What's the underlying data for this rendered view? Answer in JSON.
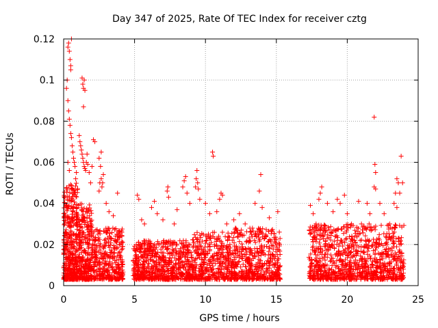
{
  "chart_data": {
    "type": "scatter",
    "title": "Day 347 of 2025, Rate Of TEC Index for receiver cztg",
    "xlabel": "GPS time / hours",
    "ylabel": "ROTI / TECUs",
    "xlim": [
      0,
      25
    ],
    "ylim": [
      0,
      0.12
    ],
    "xticks": [
      0,
      5,
      10,
      15,
      20,
      25
    ],
    "yticks": [
      0,
      0.02,
      0.04,
      0.06,
      0.08,
      0.1,
      0.12
    ],
    "xtick_labels": [
      "0",
      "5",
      "10",
      "15",
      "20",
      "25"
    ],
    "ytick_labels": [
      "0",
      "0.02",
      "0.04",
      "0.06",
      "0.08",
      "0.1",
      "0.12"
    ],
    "grid": true,
    "marker": "plus",
    "color": "#ff0000",
    "density_segments": [
      {
        "x_range": [
          0.0,
          1.0
        ],
        "y_range": [
          0.003,
          0.05
        ],
        "count": 420
      },
      {
        "x_range": [
          1.0,
          2.0
        ],
        "y_range": [
          0.003,
          0.04
        ],
        "count": 300
      },
      {
        "x_range": [
          2.0,
          4.2
        ],
        "y_range": [
          0.003,
          0.028
        ],
        "count": 360
      },
      {
        "x_range": [
          4.9,
          9.0
        ],
        "y_range": [
          0.003,
          0.022
        ],
        "count": 650
      },
      {
        "x_range": [
          9.0,
          12.0
        ],
        "y_range": [
          0.003,
          0.026
        ],
        "count": 420
      },
      {
        "x_range": [
          12.0,
          15.3
        ],
        "y_range": [
          0.003,
          0.028
        ],
        "count": 480
      },
      {
        "x_range": [
          17.3,
          20.5
        ],
        "y_range": [
          0.003,
          0.03
        ],
        "count": 480
      },
      {
        "x_range": [
          20.5,
          24.0
        ],
        "y_range": [
          0.003,
          0.03
        ],
        "count": 480
      }
    ],
    "high_points": [
      {
        "x": 0.2,
        "y": 0.096
      },
      {
        "x": 0.25,
        "y": 0.1
      },
      {
        "x": 0.3,
        "y": 0.116
      },
      {
        "x": 0.35,
        "y": 0.118
      },
      {
        "x": 0.4,
        "y": 0.114
      },
      {
        "x": 0.45,
        "y": 0.11
      },
      {
        "x": 0.5,
        "y": 0.107
      },
      {
        "x": 0.55,
        "y": 0.12
      },
      {
        "x": 0.5,
        "y": 0.105
      },
      {
        "x": 0.3,
        "y": 0.09
      },
      {
        "x": 0.35,
        "y": 0.085
      },
      {
        "x": 0.4,
        "y": 0.081
      },
      {
        "x": 0.45,
        "y": 0.078
      },
      {
        "x": 0.5,
        "y": 0.074
      },
      {
        "x": 0.55,
        "y": 0.072
      },
      {
        "x": 0.6,
        "y": 0.068
      },
      {
        "x": 0.65,
        "y": 0.065
      },
      {
        "x": 0.7,
        "y": 0.062
      },
      {
        "x": 0.75,
        "y": 0.06
      },
      {
        "x": 0.8,
        "y": 0.058
      },
      {
        "x": 0.4,
        "y": 0.056
      },
      {
        "x": 0.3,
        "y": 0.06
      },
      {
        "x": 0.9,
        "y": 0.055
      },
      {
        "x": 0.85,
        "y": 0.052
      },
      {
        "x": 1.3,
        "y": 0.101
      },
      {
        "x": 1.35,
        "y": 0.098
      },
      {
        "x": 1.4,
        "y": 0.096
      },
      {
        "x": 1.45,
        "y": 0.1
      },
      {
        "x": 1.5,
        "y": 0.095
      },
      {
        "x": 1.4,
        "y": 0.087
      },
      {
        "x": 1.1,
        "y": 0.073
      },
      {
        "x": 1.15,
        "y": 0.07
      },
      {
        "x": 1.2,
        "y": 0.068
      },
      {
        "x": 1.25,
        "y": 0.066
      },
      {
        "x": 1.3,
        "y": 0.064
      },
      {
        "x": 1.35,
        "y": 0.062
      },
      {
        "x": 1.4,
        "y": 0.06
      },
      {
        "x": 1.45,
        "y": 0.058
      },
      {
        "x": 1.5,
        "y": 0.057
      },
      {
        "x": 1.55,
        "y": 0.056
      },
      {
        "x": 1.6,
        "y": 0.06
      },
      {
        "x": 1.65,
        "y": 0.064
      },
      {
        "x": 1.7,
        "y": 0.059
      },
      {
        "x": 1.8,
        "y": 0.055
      },
      {
        "x": 1.9,
        "y": 0.05
      },
      {
        "x": 2.0,
        "y": 0.058
      },
      {
        "x": 2.1,
        "y": 0.071
      },
      {
        "x": 2.2,
        "y": 0.07
      },
      {
        "x": 2.5,
        "y": 0.062
      },
      {
        "x": 2.6,
        "y": 0.058
      },
      {
        "x": 2.65,
        "y": 0.052
      },
      {
        "x": 2.7,
        "y": 0.048
      },
      {
        "x": 2.75,
        "y": 0.05
      },
      {
        "x": 2.8,
        "y": 0.054
      },
      {
        "x": 2.5,
        "y": 0.046
      },
      {
        "x": 2.55,
        "y": 0.05
      },
      {
        "x": 2.65,
        "y": 0.065
      },
      {
        "x": 3.0,
        "y": 0.04
      },
      {
        "x": 3.2,
        "y": 0.036
      },
      {
        "x": 3.5,
        "y": 0.034
      },
      {
        "x": 3.8,
        "y": 0.045
      },
      {
        "x": 4.0,
        "y": 0.02
      },
      {
        "x": 5.2,
        "y": 0.044
      },
      {
        "x": 5.3,
        "y": 0.042
      },
      {
        "x": 5.5,
        "y": 0.032
      },
      {
        "x": 5.7,
        "y": 0.03
      },
      {
        "x": 6.2,
        "y": 0.038
      },
      {
        "x": 6.4,
        "y": 0.041
      },
      {
        "x": 6.6,
        "y": 0.035
      },
      {
        "x": 7.0,
        "y": 0.032
      },
      {
        "x": 7.3,
        "y": 0.046
      },
      {
        "x": 7.35,
        "y": 0.048
      },
      {
        "x": 7.4,
        "y": 0.043
      },
      {
        "x": 7.8,
        "y": 0.03
      },
      {
        "x": 8.0,
        "y": 0.037
      },
      {
        "x": 8.4,
        "y": 0.048
      },
      {
        "x": 8.5,
        "y": 0.051
      },
      {
        "x": 8.6,
        "y": 0.053
      },
      {
        "x": 8.7,
        "y": 0.045
      },
      {
        "x": 8.9,
        "y": 0.04
      },
      {
        "x": 9.3,
        "y": 0.048
      },
      {
        "x": 9.35,
        "y": 0.052
      },
      {
        "x": 9.4,
        "y": 0.056
      },
      {
        "x": 9.45,
        "y": 0.05
      },
      {
        "x": 9.5,
        "y": 0.047
      },
      {
        "x": 9.6,
        "y": 0.042
      },
      {
        "x": 10.0,
        "y": 0.04
      },
      {
        "x": 10.3,
        "y": 0.035
      },
      {
        "x": 10.5,
        "y": 0.065
      },
      {
        "x": 10.55,
        "y": 0.063
      },
      {
        "x": 10.8,
        "y": 0.036
      },
      {
        "x": 11.0,
        "y": 0.042
      },
      {
        "x": 11.1,
        "y": 0.045
      },
      {
        "x": 11.2,
        "y": 0.044
      },
      {
        "x": 11.5,
        "y": 0.03
      },
      {
        "x": 12.0,
        "y": 0.032
      },
      {
        "x": 12.4,
        "y": 0.035
      },
      {
        "x": 12.8,
        "y": 0.03
      },
      {
        "x": 13.5,
        "y": 0.04
      },
      {
        "x": 13.8,
        "y": 0.046
      },
      {
        "x": 13.9,
        "y": 0.054
      },
      {
        "x": 14.0,
        "y": 0.038
      },
      {
        "x": 14.5,
        "y": 0.033
      },
      {
        "x": 15.1,
        "y": 0.036
      },
      {
        "x": 17.4,
        "y": 0.039
      },
      {
        "x": 17.6,
        "y": 0.035
      },
      {
        "x": 17.8,
        "y": 0.03
      },
      {
        "x": 18.0,
        "y": 0.042
      },
      {
        "x": 18.1,
        "y": 0.045
      },
      {
        "x": 18.2,
        "y": 0.048
      },
      {
        "x": 18.6,
        "y": 0.04
      },
      {
        "x": 19.0,
        "y": 0.036
      },
      {
        "x": 19.3,
        "y": 0.042
      },
      {
        "x": 19.5,
        "y": 0.04
      },
      {
        "x": 19.8,
        "y": 0.044
      },
      {
        "x": 20.0,
        "y": 0.035
      },
      {
        "x": 20.3,
        "y": 0.03
      },
      {
        "x": 20.8,
        "y": 0.041
      },
      {
        "x": 21.0,
        "y": 0.03
      },
      {
        "x": 21.4,
        "y": 0.04
      },
      {
        "x": 21.6,
        "y": 0.035
      },
      {
        "x": 21.9,
        "y": 0.082
      },
      {
        "x": 21.95,
        "y": 0.059
      },
      {
        "x": 22.0,
        "y": 0.055
      },
      {
        "x": 21.9,
        "y": 0.048
      },
      {
        "x": 22.0,
        "y": 0.047
      },
      {
        "x": 22.3,
        "y": 0.04
      },
      {
        "x": 22.6,
        "y": 0.035
      },
      {
        "x": 23.0,
        "y": 0.03
      },
      {
        "x": 23.3,
        "y": 0.04
      },
      {
        "x": 23.4,
        "y": 0.045
      },
      {
        "x": 23.5,
        "y": 0.052
      },
      {
        "x": 23.6,
        "y": 0.05
      },
      {
        "x": 23.7,
        "y": 0.045
      },
      {
        "x": 23.8,
        "y": 0.063
      },
      {
        "x": 23.9,
        "y": 0.05
      },
      {
        "x": 23.5,
        "y": 0.038
      }
    ]
  }
}
